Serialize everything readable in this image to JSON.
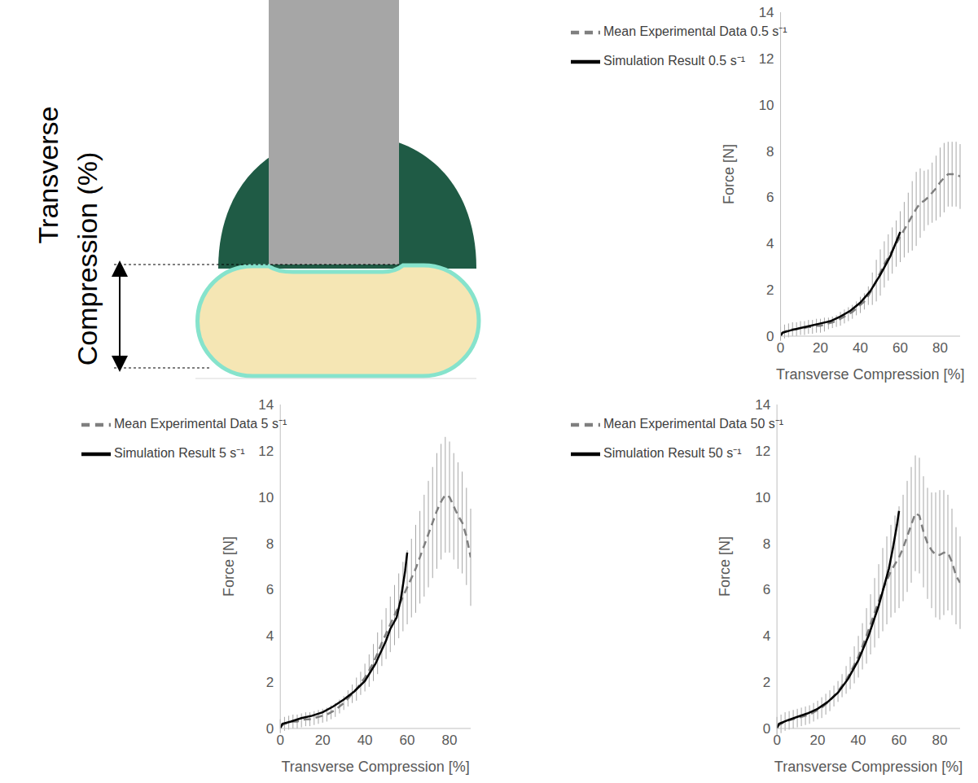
{
  "diagram": {
    "label": "Transverse Compression (%)"
  },
  "chart_data": [
    {
      "type": "line",
      "x_label": "Transverse Compression [%]",
      "y_label": "Force [N]",
      "xlim": [
        0,
        90
      ],
      "xticks": [
        0,
        20,
        40,
        60,
        80
      ],
      "ylim": [
        0,
        14
      ],
      "yticks": [
        0,
        2,
        4,
        6,
        8,
        10,
        12,
        14
      ],
      "grid": false,
      "legend": "upper left",
      "series": [
        {
          "name": "Mean Experimental Data 0.5 s⁻¹",
          "color": "#7f7f7f",
          "line_style": "dashed",
          "marker": "none",
          "x": [
            0,
            2,
            4,
            6,
            8,
            10,
            12,
            14,
            16,
            18,
            20,
            22,
            24,
            26,
            28,
            30,
            32,
            34,
            36,
            38,
            40,
            42,
            44,
            46,
            48,
            50,
            52,
            54,
            56,
            58,
            60,
            62,
            64,
            66,
            68,
            70,
            72,
            74,
            76,
            78,
            80,
            82,
            84,
            86,
            88,
            90
          ],
          "values": [
            0.1,
            0.2,
            0.25,
            0.3,
            0.3,
            0.35,
            0.35,
            0.4,
            0.4,
            0.45,
            0.45,
            0.5,
            0.55,
            0.6,
            0.65,
            0.75,
            0.85,
            0.95,
            1.05,
            1.2,
            1.35,
            1.5,
            1.75,
            2.05,
            2.4,
            2.75,
            3.1,
            3.4,
            3.7,
            4.0,
            4.3,
            4.6,
            4.9,
            5.2,
            5.5,
            5.75,
            5.85,
            6.0,
            6.2,
            6.4,
            6.65,
            6.85,
            7.0,
            7.0,
            7.0,
            6.9
          ],
          "error": [
            0.3,
            0.3,
            0.3,
            0.3,
            0.3,
            0.3,
            0.3,
            0.3,
            0.3,
            0.3,
            0.3,
            0.3,
            0.25,
            0.25,
            0.25,
            0.3,
            0.3,
            0.3,
            0.3,
            0.3,
            0.35,
            0.35,
            0.4,
            0.7,
            0.9,
            1.0,
            1.0,
            1.0,
            1.0,
            1.0,
            1.1,
            1.2,
            1.3,
            1.5,
            1.6,
            1.5,
            1.3,
            1.2,
            1.3,
            1.4,
            1.5,
            1.5,
            1.4,
            1.4,
            1.4,
            1.4
          ]
        },
        {
          "name": "Simulation Result 0.5 s⁻¹",
          "color": "#000000",
          "line_style": "solid",
          "marker": "none",
          "x": [
            0,
            1,
            5,
            10,
            15,
            20,
            25,
            30,
            35,
            40,
            45,
            50,
            55,
            60
          ],
          "values": [
            0,
            0.15,
            0.25,
            0.35,
            0.45,
            0.55,
            0.65,
            0.85,
            1.1,
            1.45,
            1.95,
            2.65,
            3.45,
            4.5
          ]
        }
      ]
    },
    {
      "type": "line",
      "x_label": "Transverse Compression [%]",
      "y_label": "Force [N]",
      "xlim": [
        0,
        90
      ],
      "xticks": [
        0,
        20,
        40,
        60,
        80
      ],
      "ylim": [
        0,
        14
      ],
      "yticks": [
        0,
        2,
        4,
        6,
        8,
        10,
        12,
        14
      ],
      "grid": false,
      "legend": "upper left",
      "series": [
        {
          "name": "Mean Experimental Data 5 s⁻¹",
          "color": "#7f7f7f",
          "line_style": "dashed",
          "marker": "none",
          "x": [
            0,
            2,
            4,
            6,
            8,
            10,
            12,
            14,
            16,
            18,
            20,
            22,
            24,
            26,
            28,
            30,
            32,
            34,
            36,
            38,
            40,
            42,
            44,
            46,
            48,
            50,
            52,
            54,
            56,
            58,
            60,
            62,
            64,
            66,
            68,
            70,
            72,
            74,
            76,
            78,
            80,
            82,
            84,
            86,
            88,
            90
          ],
          "values": [
            0.1,
            0.2,
            0.25,
            0.3,
            0.3,
            0.35,
            0.4,
            0.4,
            0.45,
            0.5,
            0.55,
            0.6,
            0.7,
            0.8,
            0.95,
            1.1,
            1.3,
            1.5,
            1.7,
            1.95,
            2.2,
            2.5,
            2.85,
            3.25,
            3.7,
            4.1,
            4.5,
            4.9,
            5.3,
            5.7,
            6.1,
            6.5,
            6.9,
            7.4,
            7.9,
            8.4,
            8.9,
            9.4,
            9.8,
            10.1,
            10.0,
            9.6,
            9.2,
            8.9,
            8.3,
            7.4
          ],
          "error": [
            0.3,
            0.3,
            0.3,
            0.3,
            0.3,
            0.3,
            0.3,
            0.3,
            0.3,
            0.3,
            0.3,
            0.3,
            0.3,
            0.3,
            0.3,
            0.3,
            0.35,
            0.4,
            0.5,
            0.5,
            0.6,
            0.7,
            0.8,
            0.9,
            1.0,
            1.1,
            1.2,
            1.3,
            1.4,
            1.5,
            1.6,
            1.7,
            1.9,
            2.0,
            2.2,
            2.3,
            2.4,
            2.5,
            2.5,
            2.5,
            2.4,
            2.3,
            2.3,
            2.2,
            2.1,
            2.1
          ]
        },
        {
          "name": "Simulation Result 5 s⁻¹",
          "color": "#000000",
          "line_style": "solid",
          "marker": "none",
          "x": [
            0,
            1,
            5,
            10,
            15,
            20,
            25,
            30,
            35,
            40,
            45,
            50,
            52,
            55,
            57,
            59,
            60
          ],
          "values": [
            0,
            0.2,
            0.3,
            0.45,
            0.55,
            0.7,
            0.95,
            1.25,
            1.6,
            2.05,
            2.8,
            3.8,
            4.3,
            4.8,
            5.6,
            6.8,
            7.6
          ]
        }
      ]
    },
    {
      "type": "line",
      "x_label": "Transverse Compression [%]",
      "y_label": "Force [N]",
      "xlim": [
        0,
        90
      ],
      "xticks": [
        0,
        20,
        40,
        60,
        80
      ],
      "ylim": [
        0,
        14
      ],
      "yticks": [
        0,
        2,
        4,
        6,
        8,
        10,
        12,
        14
      ],
      "grid": false,
      "legend": "upper left",
      "series": [
        {
          "name": "Mean Experimental Data 50 s⁻¹",
          "color": "#7f7f7f",
          "line_style": "dashed",
          "marker": "none",
          "x": [
            0,
            2,
            4,
            6,
            8,
            10,
            12,
            14,
            16,
            18,
            20,
            22,
            24,
            26,
            28,
            30,
            32,
            34,
            36,
            38,
            40,
            42,
            44,
            46,
            48,
            50,
            52,
            54,
            56,
            58,
            60,
            62,
            64,
            66,
            68,
            70,
            72,
            74,
            76,
            78,
            80,
            82,
            84,
            86,
            88,
            90
          ],
          "values": [
            0.1,
            0.2,
            0.3,
            0.35,
            0.4,
            0.45,
            0.5,
            0.55,
            0.6,
            0.7,
            0.8,
            0.9,
            1.05,
            1.2,
            1.4,
            1.6,
            1.85,
            2.1,
            2.4,
            2.75,
            3.1,
            3.55,
            4.0,
            4.5,
            5.0,
            5.5,
            6.0,
            6.4,
            6.8,
            7.1,
            7.4,
            7.8,
            8.3,
            8.8,
            9.3,
            9.2,
            8.5,
            8.0,
            7.7,
            7.5,
            7.5,
            7.6,
            7.6,
            7.2,
            6.6,
            6.3
          ],
          "error": [
            0.4,
            0.4,
            0.4,
            0.4,
            0.4,
            0.4,
            0.4,
            0.4,
            0.4,
            0.4,
            0.4,
            0.45,
            0.45,
            0.45,
            0.45,
            0.45,
            0.5,
            0.6,
            0.7,
            0.8,
            0.9,
            1.0,
            1.2,
            1.3,
            1.5,
            1.6,
            1.8,
            1.9,
            2.0,
            2.1,
            2.2,
            2.3,
            2.4,
            2.5,
            2.5,
            2.5,
            2.4,
            2.4,
            2.5,
            2.7,
            2.8,
            2.7,
            2.5,
            2.3,
            2.1,
            2.0
          ]
        },
        {
          "name": "Simulation Result 50 s⁻¹",
          "color": "#000000",
          "line_style": "solid",
          "marker": "none",
          "x": [
            0,
            1,
            5,
            10,
            15,
            20,
            25,
            30,
            35,
            40,
            45,
            50,
            55,
            57,
            59,
            60
          ],
          "values": [
            0,
            0.2,
            0.35,
            0.5,
            0.65,
            0.85,
            1.15,
            1.55,
            2.15,
            2.95,
            4.0,
            5.3,
            6.9,
            7.8,
            8.8,
            9.4
          ]
        }
      ]
    }
  ]
}
